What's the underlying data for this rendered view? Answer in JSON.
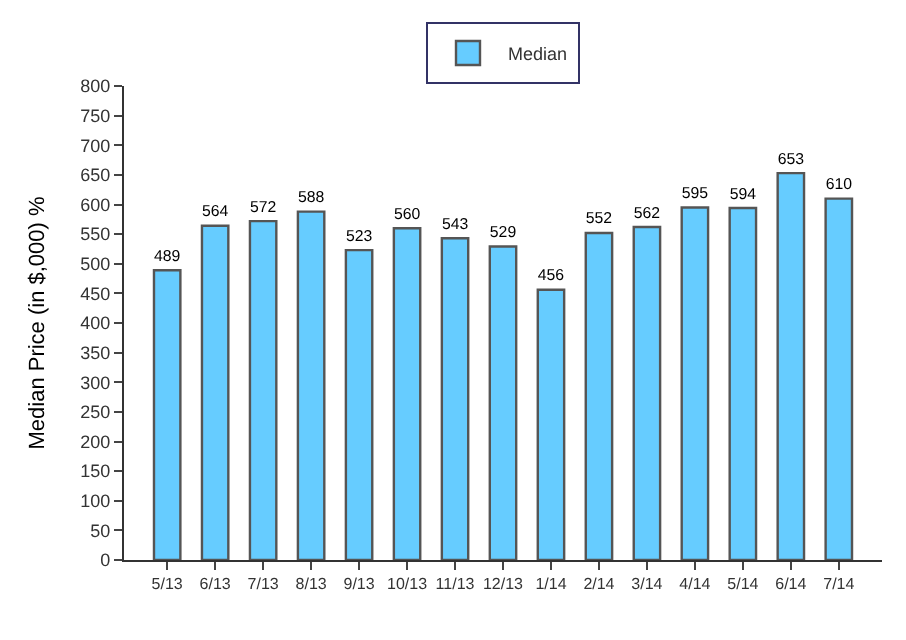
{
  "chart_data": {
    "type": "bar",
    "ylabel": "Median Price (in $,000) %",
    "categories": [
      "5/13",
      "6/13",
      "7/13",
      "8/13",
      "9/13",
      "10/13",
      "11/13",
      "12/13",
      "1/14",
      "2/14",
      "3/14",
      "4/14",
      "5/14",
      "6/14",
      "7/14"
    ],
    "series": [
      {
        "name": "Median",
        "color": "#66ccff",
        "values": [
          489,
          564,
          572,
          588,
          523,
          560,
          543,
          529,
          456,
          552,
          562,
          595,
          594,
          653,
          610
        ]
      }
    ],
    "ylim": [
      0,
      800
    ],
    "yticks": [
      0,
      50,
      100,
      150,
      200,
      250,
      300,
      350,
      400,
      450,
      500,
      550,
      600,
      650,
      700,
      750,
      800
    ],
    "data_labels": true,
    "legend": "top"
  }
}
